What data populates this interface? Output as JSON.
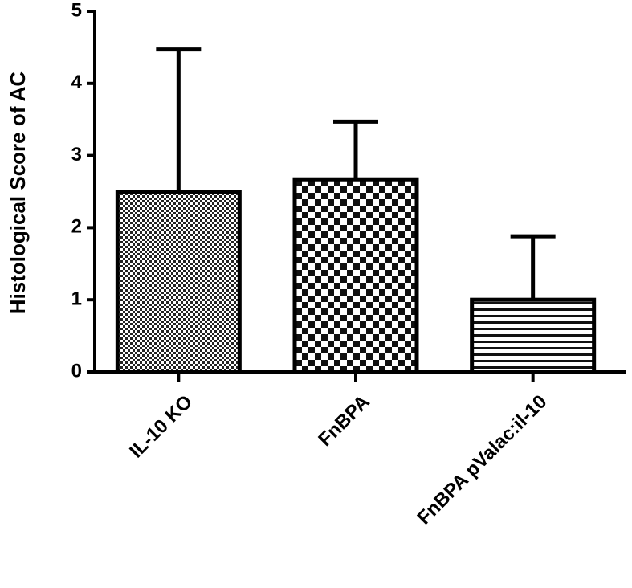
{
  "chart_data": {
    "type": "bar",
    "y_label": "Histological Score of AC",
    "categories": [
      "IL-10 KO",
      "FnBPA",
      "FnBPA pValac:il-10"
    ],
    "values": [
      2.5,
      2.67,
      1.0
    ],
    "errors": [
      1.97,
      0.8,
      0.88
    ],
    "color": "#000000",
    "ylim": [
      0,
      5
    ],
    "yticks": [
      0,
      1,
      2,
      3,
      4,
      5
    ],
    "grid": false
  }
}
